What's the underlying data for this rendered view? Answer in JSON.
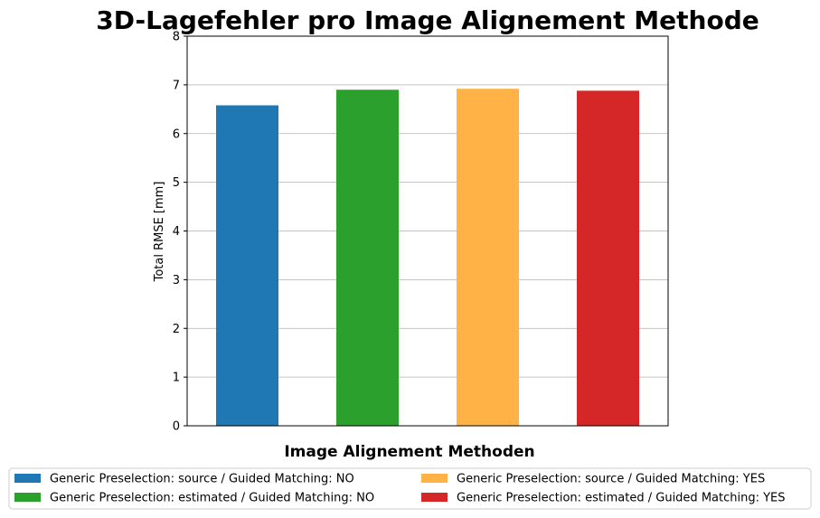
{
  "chart_data": {
    "type": "bar",
    "title": "3D-Lagefehler pro Image Alignement Methode",
    "xlabel": "Image Alignement Methoden",
    "ylabel": "Total RMSE [mm]",
    "ylim": [
      0,
      8
    ],
    "yticks": [
      "0",
      "1",
      "2",
      "3",
      "4",
      "5",
      "6",
      "7",
      "8"
    ],
    "grid": "horizontal",
    "legend_position": "bottom",
    "series": [
      {
        "name": "Generic Preselection: source / Guided Matching: NO",
        "value": 6.58,
        "color": "#1f77b4"
      },
      {
        "name": "Generic Preselection: estimated / Guided Matching: NO",
        "value": 6.9,
        "color": "#2ca02c"
      },
      {
        "name": "Generic Preselection: source / Guided Matching: YES",
        "value": 6.92,
        "color": "#ffb347"
      },
      {
        "name": "Generic Preselection: estimated / Guided Matching: YES",
        "value": 6.88,
        "color": "#d62728"
      }
    ]
  }
}
